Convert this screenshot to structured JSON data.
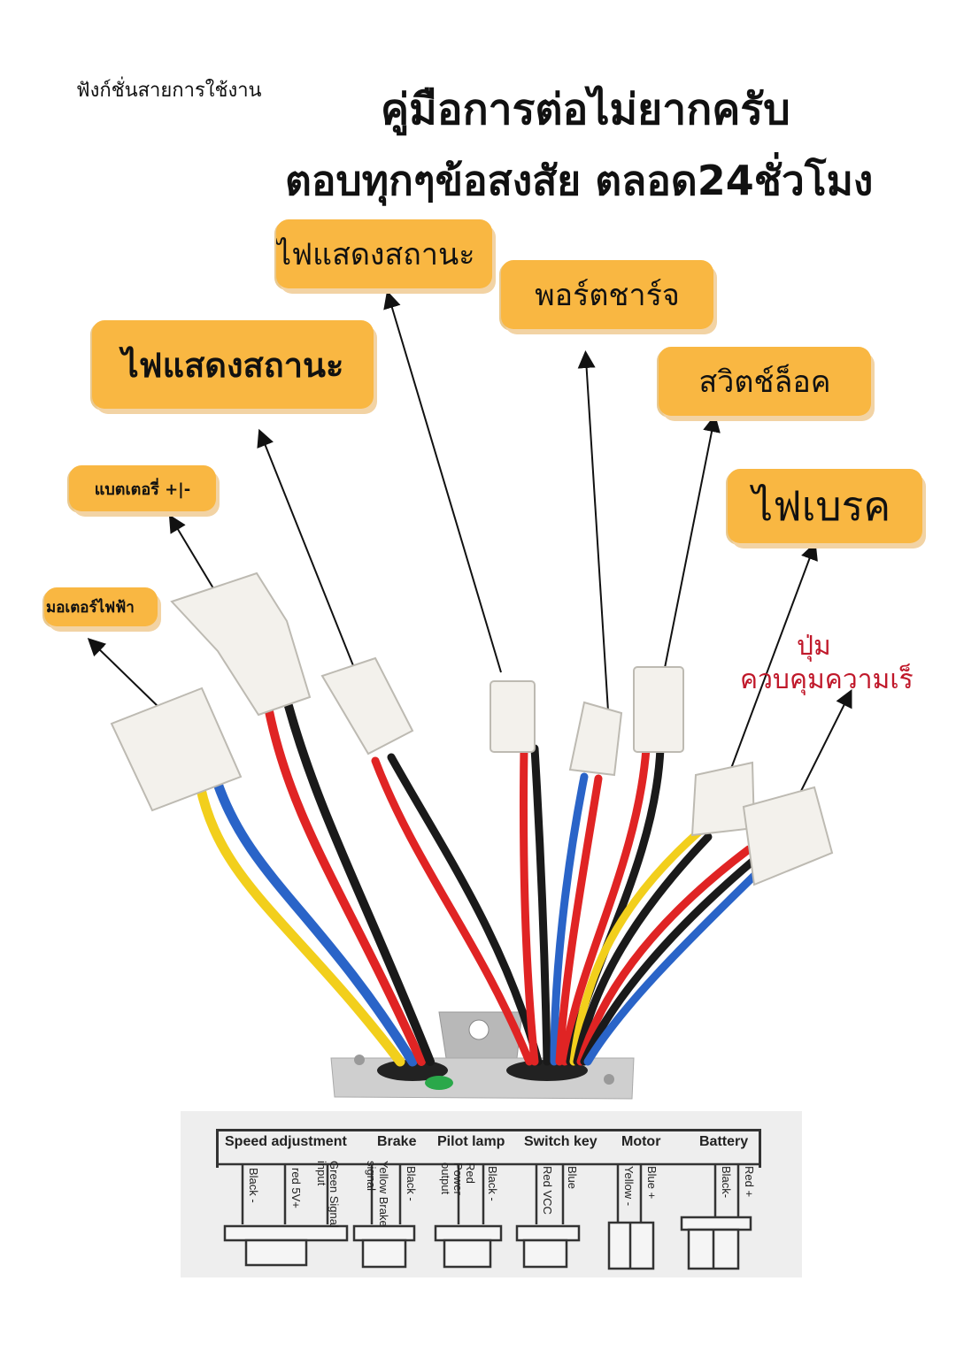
{
  "header": {
    "section_label": "ฟังก์ชั่นสายการใช้งาน",
    "title_line1": "คู่มือการต่อไม่ยากครับ",
    "title_line2": "ตอบทุกๆข้อสงสัย ตลอด24ชั่วโมง"
  },
  "callouts": {
    "status_light_top": "ไฟแสดงสถานะ",
    "charge_port": "พอร์ตชาร์จ",
    "status_light_big": "ไฟแสดงสถานะ",
    "lock_switch": "สวิตช์ล็อค",
    "battery": "แบตเตอรี่ +|-",
    "brake_light": "ไฟเบรค",
    "electric_motor": "มอเตอร์ไฟฟ้า"
  },
  "speed_control": {
    "line1": "ปุ่ม",
    "line2": "ควบคุมความเร็ว"
  },
  "wiring_legend": {
    "headers": [
      "Speed adjustment",
      "Brake",
      "Pilot lamp",
      "Switch key",
      "Motor",
      "Battery"
    ],
    "pins": {
      "speed_black": "Black -",
      "speed_red": "red 5V+",
      "speed_green": "Green Signal input",
      "brake_yellow": "Yellow Brake signal",
      "brake_black": "Black -",
      "pilot_red": "Red Power output",
      "pilot_black": "Black -",
      "switch_red": "Red VCC",
      "switch_blue": "Blue",
      "motor_yellow": "Yellow -",
      "motor_blue": "Blue +",
      "battery_black": "Black-",
      "battery_red": "Red +"
    }
  },
  "colors": {
    "callout_fill": "#f9b742",
    "speed_label": "#c0182a",
    "wire_red": "#e02424",
    "wire_black": "#1a1a1a",
    "wire_blue": "#2a64c8",
    "wire_yellow": "#f2cf1c"
  }
}
